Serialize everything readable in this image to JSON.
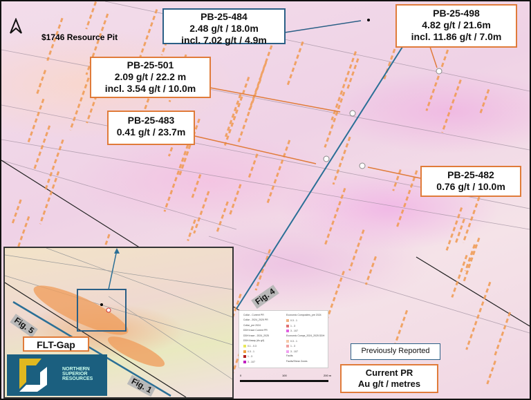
{
  "map": {
    "pit_label": "$1746 Resource Pit",
    "north_arrow_icon": "north-arrow-icon",
    "colors": {
      "current_pr_border": "#e07b39",
      "previous_border": "#2a5f86",
      "section_line": "#2a6f96"
    },
    "callouts": [
      {
        "hole": "PB-25-484",
        "line1": "2.48 g/t / 18.0m",
        "line2": "incl. 7.02 g/t / 4.9m",
        "status": "previously-reported"
      },
      {
        "hole": "PB-25-498",
        "line1": "4.82 g/t / 21.6m",
        "line2": "incl. 11.86 g/t / 7.0m",
        "status": "current"
      },
      {
        "hole": "PB-25-501",
        "line1": "2.09 g/t / 22.2 m",
        "line2": "incl. 3.54 g/t / 10.0m",
        "status": "current"
      },
      {
        "hole": "PB-25-483",
        "line1": "0.41 g/t / 23.7m",
        "status": "current"
      },
      {
        "hole": "PB-25-482",
        "line1": "0.76 g/t / 10.0m",
        "status": "current"
      }
    ],
    "figure_labels": [
      "Fig. 4",
      "Fig. 5",
      "Fig. 1"
    ],
    "inset": {
      "area_label": "FLT-Gap",
      "logo_text": [
        "NORTHERN",
        "SUPERIOR",
        "RESOURCES"
      ]
    },
    "legend": {
      "left": [
        {
          "label": "Collar - Current PR"
        },
        {
          "label": "Collar - 2024_2025 PR"
        },
        {
          "label": "Collar_pre 2024"
        },
        {
          "label": "DDH trace Current PR"
        },
        {
          "label": "DDH trace - 2024_2025"
        },
        {
          "label": "DDH Assay (Au g/t)"
        },
        {
          "label": "0.1 - 0.3",
          "color": "#e8e85a"
        },
        {
          "label": "0.3 - 1",
          "color": "#f0a040"
        },
        {
          "label": "1 - 3",
          "color": "#b02020"
        },
        {
          "label": "3 - 107",
          "color": "#c020c0"
        }
      ],
      "right": [
        {
          "label": "Economic Composites_pre 2024"
        },
        {
          "label": "0.3 - 1",
          "color": "#f0b080"
        },
        {
          "label": "1 - 3",
          "color": "#e07070"
        },
        {
          "label": "3 - 107",
          "color": "#e060e0"
        },
        {
          "label": "Economic Comps_2024_2025 DDH"
        },
        {
          "label": "0.3 - 1",
          "color": "#f5c8a8"
        },
        {
          "label": "1 - 3",
          "color": "#f0a0a0"
        },
        {
          "label": "3 - 107",
          "color": "#f0a0f0"
        },
        {
          "label": "Faults"
        },
        {
          "label": "Faults/Shear Zones"
        }
      ],
      "scale": [
        "0",
        "100",
        "200 m"
      ]
    },
    "key": {
      "previous": "Previously Reported",
      "current_line1": "Current PR",
      "current_line2": "Au g/t / metres"
    }
  }
}
